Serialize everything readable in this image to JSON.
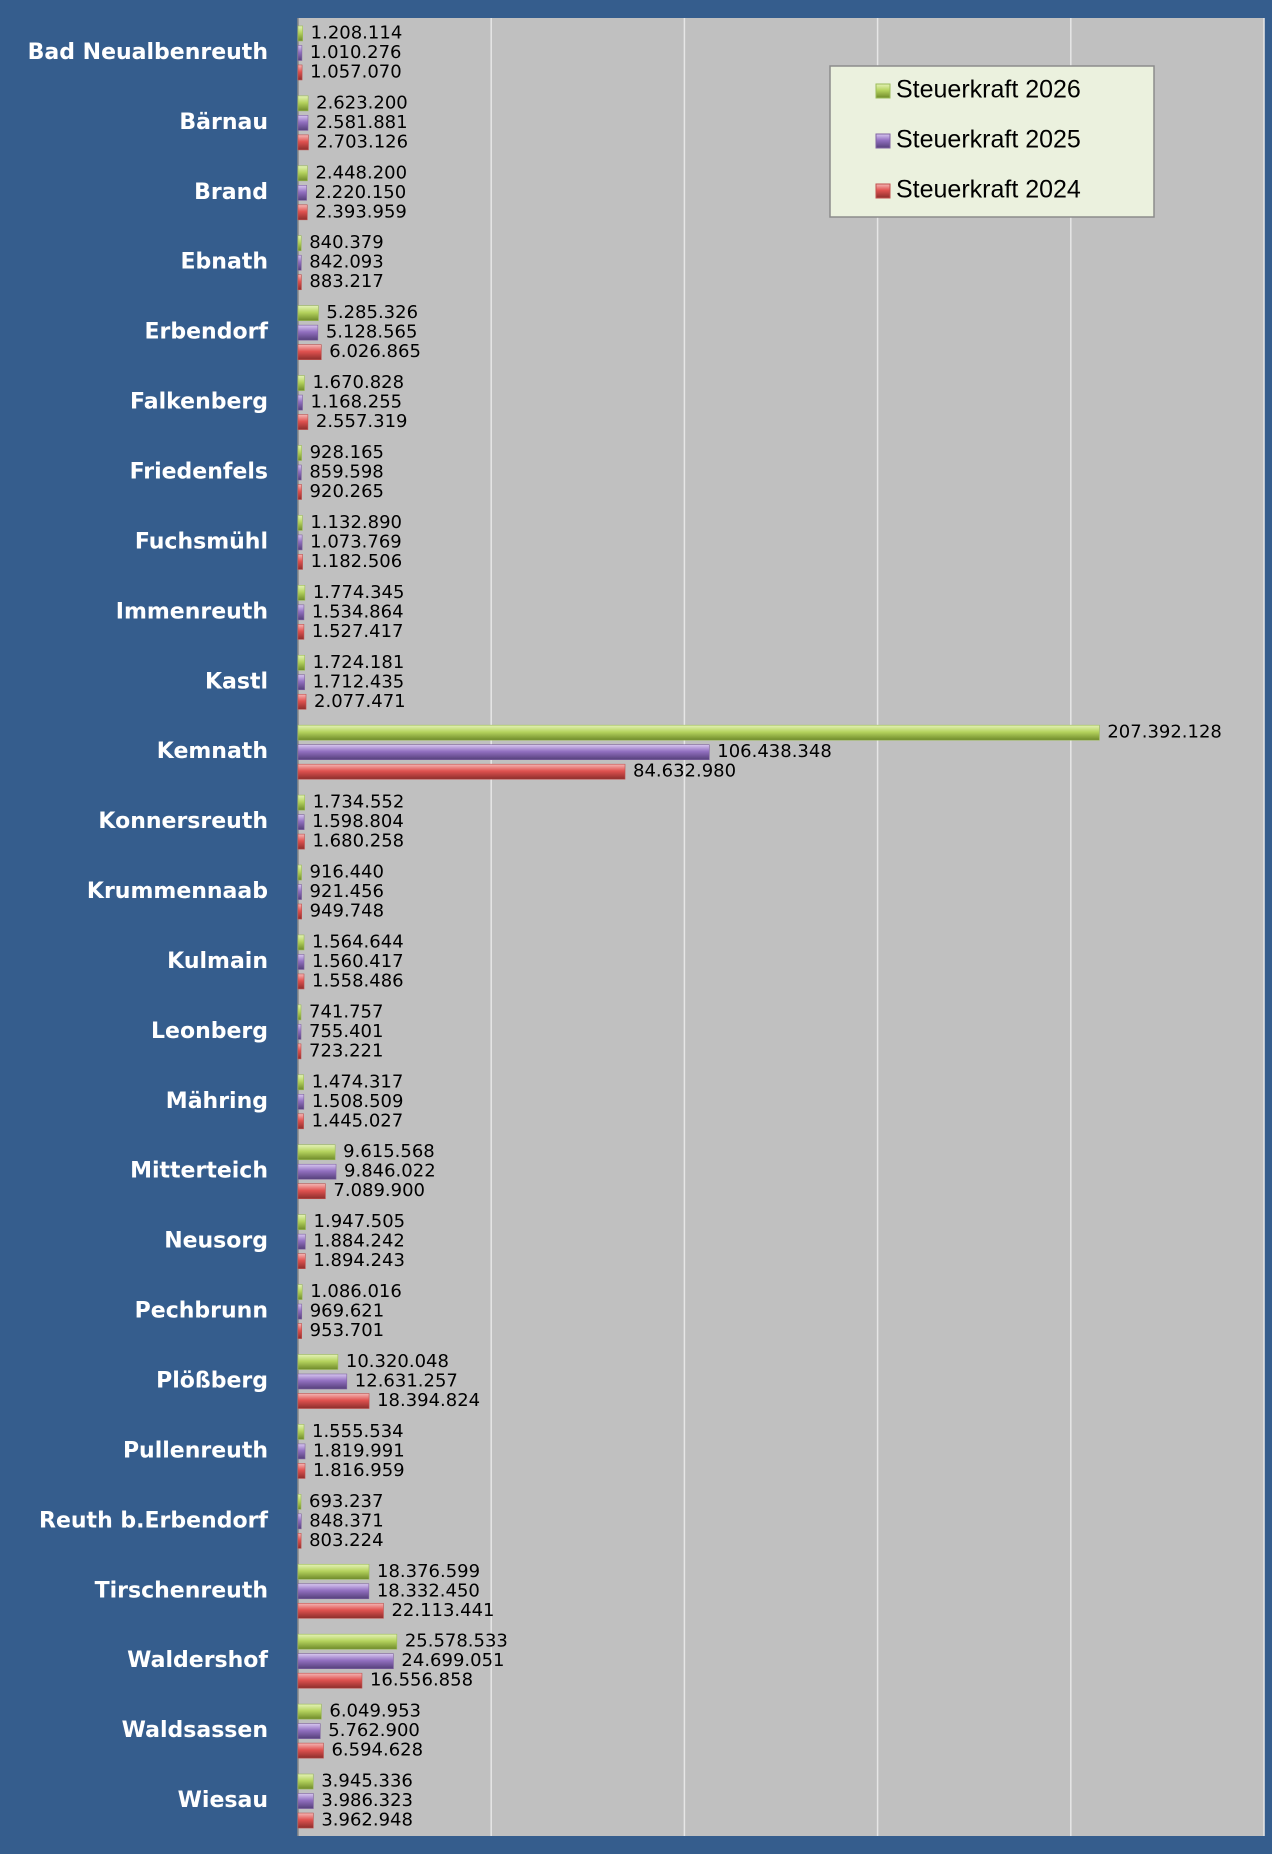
{
  "chart_data": {
    "type": "hbar",
    "categories": [
      "Bad Neualbenreuth",
      "Bärnau",
      "Brand",
      "Ebnath",
      "Erbendorf",
      "Falkenberg",
      "Friedenfels",
      "Fuchsmühl",
      "Immenreuth",
      "Kastl",
      "Kemnath",
      "Konnersreuth",
      "Krummennaab",
      "Kulmain",
      "Leonberg",
      "Mähring",
      "Mitterteich",
      "Neusorg",
      "Pechbrunn",
      "Plößberg",
      "Pullenreuth",
      "Reuth b.Erbendorf",
      "Tirschenreuth",
      "Waldershof",
      "Waldsassen",
      "Wiesau"
    ],
    "series": [
      {
        "name": "Steuerkraft 2026",
        "color": "#9bbb59",
        "values": [
          1208114,
          2623200,
          2448200,
          840379,
          5285326,
          1670828,
          928165,
          1132890,
          1774345,
          1724181,
          207392128,
          1734552,
          916440,
          1564644,
          741757,
          1474317,
          9615568,
          1947505,
          1086016,
          10320048,
          1555534,
          693237,
          18376599,
          25578533,
          6049953,
          3945336
        ],
        "value_labels": [
          "1.208.114",
          "2.623.200",
          "2.448.200",
          "840.379",
          "5.285.326",
          "1.670.828",
          "928.165",
          "1.132.890",
          "1.774.345",
          "1.724.181",
          "207.392.128",
          "1.734.552",
          "916.440",
          "1.564.644",
          "741.757",
          "1.474.317",
          "9.615.568",
          "1.947.505",
          "1.086.016",
          "10.320.048",
          "1.555.534",
          "693.237",
          "18.376.599",
          "25.578.533",
          "6.049.953",
          "3.945.336"
        ]
      },
      {
        "name": "Steuerkraft 2025",
        "color": "#8064a2",
        "values": [
          1010276,
          2581881,
          2220150,
          842093,
          5128565,
          1168255,
          859598,
          1073769,
          1534864,
          1712435,
          106438348,
          1598804,
          921456,
          1560417,
          755401,
          1508509,
          9846022,
          1884242,
          969621,
          12631257,
          1819991,
          848371,
          18332450,
          24699051,
          5762900,
          3986323
        ],
        "value_labels": [
          "1.010.276",
          "2.581.881",
          "2.220.150",
          "842.093",
          "5.128.565",
          "1.168.255",
          "859.598",
          "1.073.769",
          "1.534.864",
          "1.712.435",
          "106.438.348",
          "1.598.804",
          "921.456",
          "1.560.417",
          "755.401",
          "1.508.509",
          "9.846.022",
          "1.884.242",
          "969.621",
          "12.631.257",
          "1.819.991",
          "848.371",
          "18.332.450",
          "24.699.051",
          "5.762.900",
          "3.986.323"
        ]
      },
      {
        "name": "Steuerkraft 2024",
        "color": "#c0504d",
        "values": [
          1057070,
          2703126,
          2393959,
          883217,
          6026865,
          2557319,
          920265,
          1182506,
          1527417,
          2077471,
          84632980,
          1680258,
          949748,
          1558486,
          723221,
          1445027,
          7089900,
          1894243,
          953701,
          18394824,
          1816959,
          803224,
          22113441,
          16556858,
          6594628,
          3962948
        ],
        "value_labels": [
          "1.057.070",
          "2.703.126",
          "2.393.959",
          "883.217",
          "6.026.865",
          "2.557.319",
          "920.265",
          "1.182.506",
          "1.527.417",
          "2.077.471",
          "84.632.980",
          "1.680.258",
          "949.748",
          "1.558.486",
          "723.221",
          "1.445.027",
          "7.089.900",
          "1.894.243",
          "953.701",
          "18.394.824",
          "1.816.959",
          "803.224",
          "22.113.441",
          "16.556.858",
          "6.594.628",
          "3.962.948"
        ]
      }
    ],
    "xlim": [
      0,
      250000000
    ],
    "xticks": [
      0,
      50000000,
      100000000,
      150000000,
      200000000,
      250000000
    ],
    "grid": true,
    "legend": "top-right"
  }
}
